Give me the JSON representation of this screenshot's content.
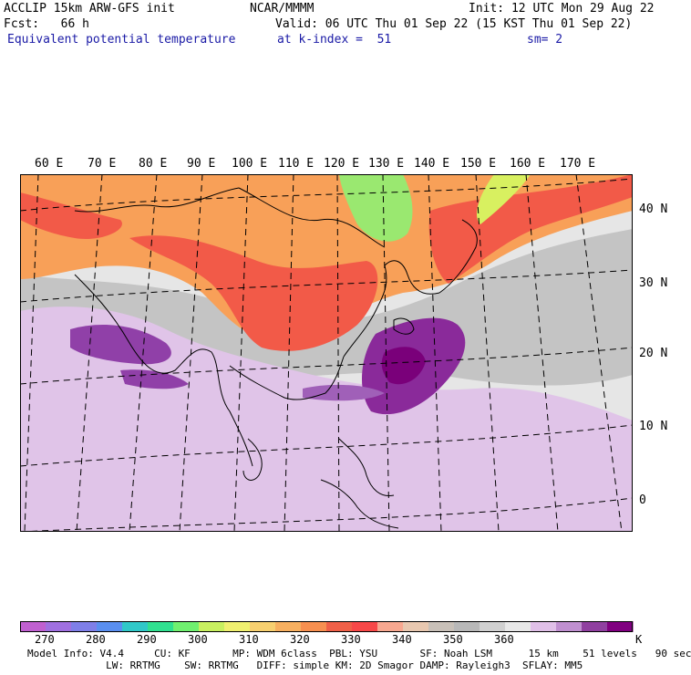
{
  "header": {
    "model": "ACCLIP 15km ARW-GFS init",
    "fcst": "Fcst:   66 h",
    "variable": "Equivalent potential temperature",
    "center": "NCAR/MMMM",
    "init": "Init: 12 UTC Mon 29 Aug 22",
    "valid": "Valid: 06 UTC Thu 01 Sep 22 (15 KST Thu 01 Sep 22)",
    "level": "at k-index =  51",
    "smooth": "sm= 2"
  },
  "map": {
    "lon_labels": [
      "60 E",
      "70 E",
      "80 E",
      "90 E",
      "100 E",
      "110 E",
      "120 E",
      "130 E",
      "140 E",
      "150 E",
      "160 E",
      "170 E"
    ],
    "lat_labels": [
      "40 N",
      "30 N",
      "20 N",
      "10 N",
      "0"
    ]
  },
  "colorbar": {
    "unit": "K",
    "tick_labels": [
      "270",
      "280",
      "290",
      "300",
      "310",
      "320",
      "330",
      "340",
      "350",
      "360"
    ],
    "colors": [
      "#c060d0",
      "#a070e0",
      "#7f7fe8",
      "#5a8ff0",
      "#30c8c8",
      "#30e090",
      "#70f070",
      "#c8f060",
      "#f0f070",
      "#f8d070",
      "#f8b060",
      "#f89050",
      "#f06048",
      "#f84848",
      "#f8a890",
      "#e8c8b0",
      "#c8c0b8",
      "#b8b8b8",
      "#d0d0d0",
      "#e8e8e8",
      "#e0c0e8",
      "#c090d0",
      "#9040a0",
      "#800080"
    ]
  },
  "footer": {
    "line1": "Model Info: V4.4     CU: KF       MP: WDM 6class  PBL: YSU       SF: Noah LSM      15 km    51 levels   90 sec",
    "line2": "             LW: RRTMG    SW: RRTMG   DIFF: simple KM: 2D Smagor DAMP: Rayleigh3  SFLAY: MM5"
  }
}
